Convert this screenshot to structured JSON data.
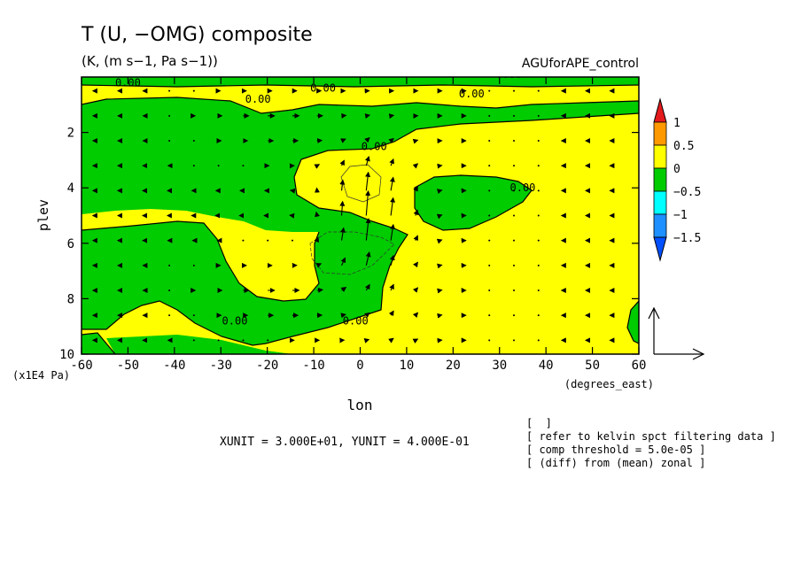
{
  "chart_data": {
    "type": "heatmap",
    "title": "T (U, −OMG) composite",
    "subtitle": "(K, (m s−1, Pa s−1))",
    "dataset_label": "AGUforAPE_control",
    "xlabel": "lon",
    "x_units": "(degrees_east)",
    "ylabel": "plev",
    "y_units": "(x1E4 Pa)",
    "xlim": [
      -60,
      60
    ],
    "ylim": [
      10,
      0
    ],
    "x_ticks": [
      -60,
      -50,
      -40,
      -30,
      -20,
      -10,
      0,
      10,
      20,
      30,
      40,
      50,
      60
    ],
    "y_ticks": [
      2,
      4,
      6,
      8,
      10
    ],
    "colorbar": {
      "levels": [
        "1",
        "0.5",
        "0",
        "−0.5",
        "−1",
        "−1.5"
      ],
      "colors": [
        "#e41a1c",
        "#ff9900",
        "#ffff00",
        "#00cc00",
        "#00ffff",
        "#1e90ff",
        "#0050ff"
      ]
    },
    "contour_labels": [
      {
        "text": "0.00",
        "lon": -50,
        "plev": 0.2
      },
      {
        "text": "0.00",
        "lon": -22,
        "plev": 0.8
      },
      {
        "text": "0.00",
        "lon": -8,
        "plev": 0.4
      },
      {
        "text": "0.00",
        "lon": 24,
        "plev": 0.6
      },
      {
        "text": "0.00",
        "lon": 32,
        "plev": -0.1
      },
      {
        "text": "0.00",
        "lon": 3,
        "plev": 2.5
      },
      {
        "text": "0.00",
        "lon": 35,
        "plev": 4.0
      },
      {
        "text": "0.00",
        "lon": -27,
        "plev": 8.8
      },
      {
        "text": "0.00",
        "lon": -1,
        "plev": 8.8
      }
    ],
    "vector_reference": {
      "xunit_label": "XUNIT = 3.000E+01, YUNIT = 4.000E-01"
    },
    "grid": false,
    "legend_position": "right"
  },
  "notes": [
    "[  ]",
    "[ refer to kelvin spct filtering data ]",
    "[ comp threshold = 5.0e-05 ]",
    "[ (diff) from (mean) zonal ]"
  ]
}
